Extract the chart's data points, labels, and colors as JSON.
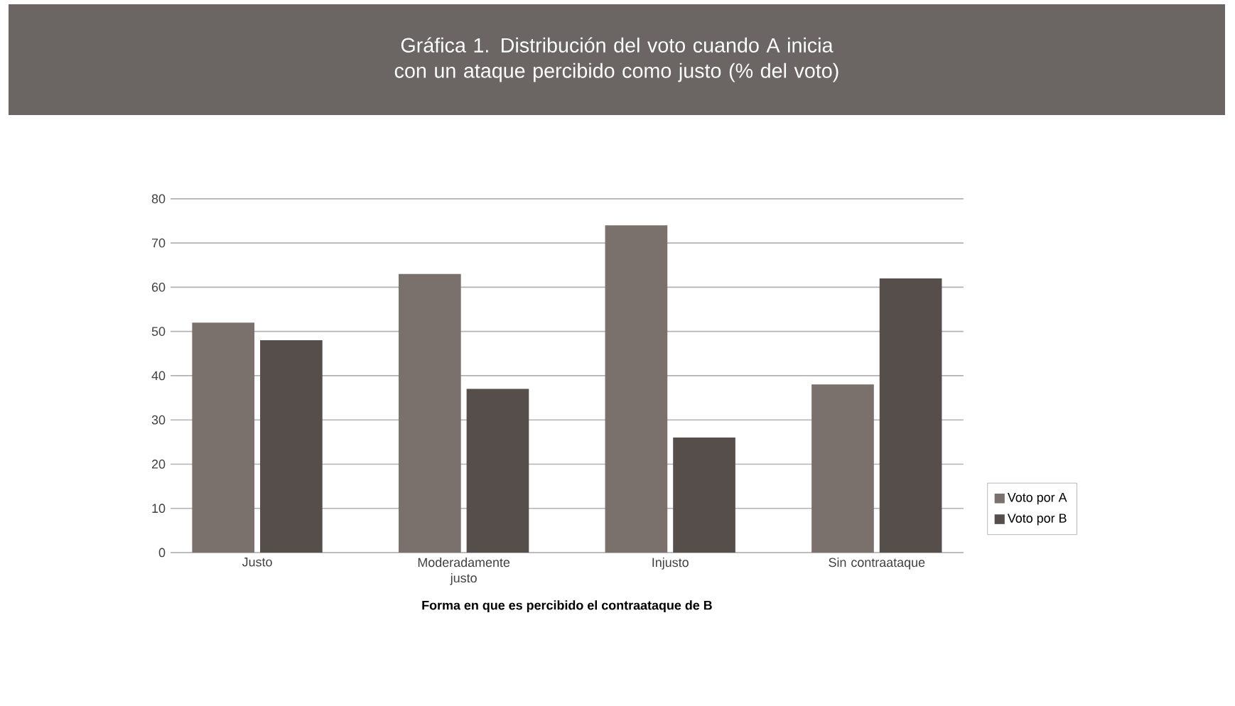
{
  "chart_data": {
    "type": "bar",
    "title": "Gráfica 1. Distribución del voto cuando A inicia con un ataque percibido como justo (% del voto)",
    "xlabel": "Forma en que es percibido el contraataque de B",
    "categories": [
      "Justo",
      "Moderadamente justo",
      "Injusto",
      "Sin contraataque"
    ],
    "series": [
      {
        "name": "Voto por A",
        "color": "#7a716c",
        "values": [
          52,
          63,
          74,
          38
        ]
      },
      {
        "name": "Voto por B",
        "color": "#564e4b",
        "values": [
          48,
          37,
          26,
          62
        ]
      }
    ],
    "ylim": [
      0,
      80
    ],
    "yticks": [
      0,
      10,
      20,
      30,
      40,
      50,
      60,
      70,
      80
    ],
    "grid": "y",
    "legend": "right"
  }
}
